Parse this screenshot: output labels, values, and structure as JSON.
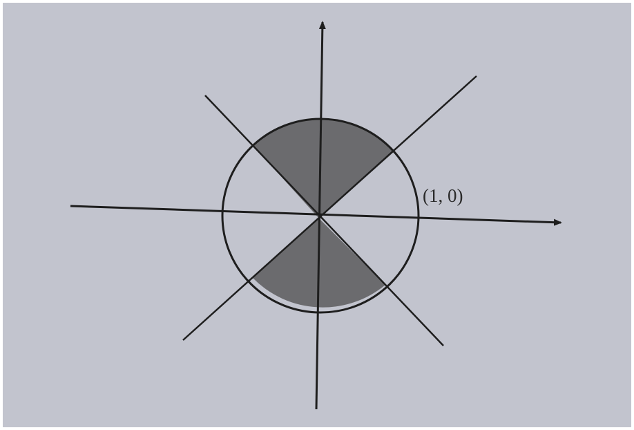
{
  "colors": {
    "paper": "#c2c4ce",
    "ink": "#1e1e1e",
    "shaded_region": "#6b6b6e"
  },
  "labels": {
    "point": "(1, 0)"
  }
}
